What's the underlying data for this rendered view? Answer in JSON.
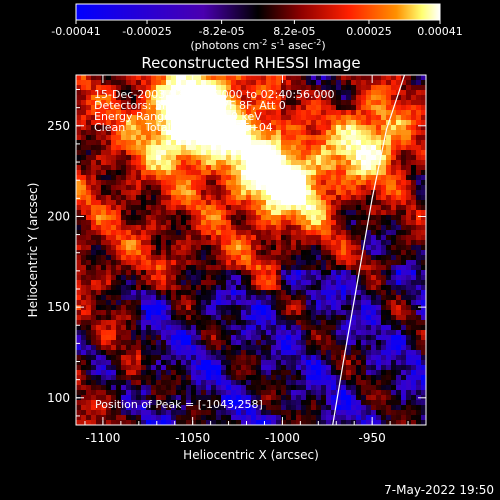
{
  "chart_data": {
    "type": "heatmap",
    "title": "Reconstructed RHESSI Image",
    "xlabel": "Heliocentric X (arcsec)",
    "ylabel": "Heliocentric Y (arcsec)",
    "xlim": [
      -1115,
      -920
    ],
    "ylim": [
      85,
      278
    ],
    "x_ticks": [
      "-1100",
      "-1050",
      "-1000",
      "-950"
    ],
    "y_ticks": [
      "100",
      "150",
      "200",
      "250"
    ],
    "x_tick_values": [
      -1100,
      -1050,
      -1000,
      -950
    ],
    "y_tick_values": [
      100,
      150,
      200,
      250
    ],
    "colorbar": {
      "ticks": [
        "-0.00041",
        "-0.00025",
        "-8.2e-05",
        "8.2e-05",
        "0.00025",
        "0.00041"
      ],
      "tick_values": [
        -0.00041,
        -0.00025,
        -8.2e-05,
        8.2e-05,
        0.00025,
        0.00041
      ],
      "units_text": "(photons cm",
      "units_sup1": "-2",
      "units_mid": " s",
      "units_sup2": "-1",
      "units_mid2": " asec",
      "units_sup3": "-2",
      "units_end": ")",
      "colors": [
        "#0000ff",
        "#3a00c8",
        "#000000",
        "#800000",
        "#ff2000",
        "#ff8000",
        "#ffff80",
        "#ffffff"
      ]
    },
    "annotations": {
      "time_range": "15-Dec-2003 02:31:56.000 to 02:40:56.000",
      "detectors": "Detectors: 3F 4F 5F 6F 7F 8F, Att 0",
      "energy": "Energy Range: 25.0 - 50.0 keV",
      "clean": "Clean",
      "total_counts": "Total counts: 1.13E+04",
      "peak": "Position of Peak = [-1043,258]"
    },
    "limb_curve": {
      "x": [
        -972,
        -966,
        -958,
        -950,
        -942,
        -932
      ],
      "y": [
        85,
        120,
        165,
        210,
        248,
        278
      ]
    },
    "bright_regions": [
      {
        "x": -1043,
        "y": 258,
        "level": 0.95
      },
      {
        "x": -1010,
        "y": 230,
        "level": 0.9
      },
      {
        "x": -990,
        "y": 215,
        "level": 0.85
      },
      {
        "x": -950,
        "y": 242,
        "level": 0.95
      },
      {
        "x": -1058,
        "y": 250,
        "level": 0.8
      }
    ]
  },
  "footer": {
    "timestamp": "7-May-2022 19:50"
  }
}
